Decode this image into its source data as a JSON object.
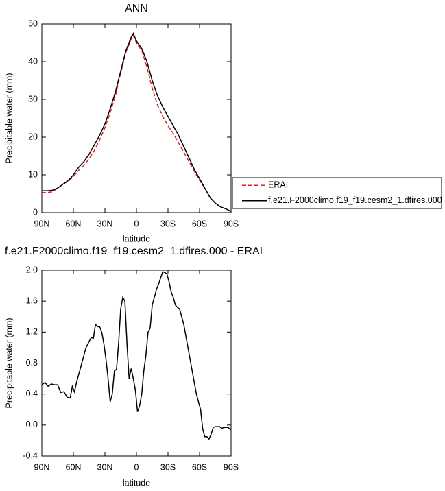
{
  "chart_data": [
    {
      "type": "line",
      "title": "ANN",
      "x_label": "latitude",
      "y_label": "Precipitable water (mm)",
      "x": [
        90,
        85,
        80,
        75,
        70,
        65,
        60,
        55,
        50,
        45,
        40,
        35,
        30,
        25,
        20,
        15,
        10,
        5,
        3,
        0,
        -5,
        -10,
        -15,
        -20,
        -25,
        -30,
        -35,
        -40,
        -45,
        -50,
        -55,
        -60,
        -65,
        -70,
        -75,
        -80,
        -85,
        -90
      ],
      "series": [
        {
          "name": "ERAI",
          "color": "#e41a1c",
          "line_style": "dashed",
          "values": [
            5.3,
            5.3,
            5.5,
            6.5,
            7.5,
            8.3,
            9.5,
            11.2,
            12.5,
            14.3,
            16.5,
            19.3,
            22.5,
            26.5,
            31,
            37,
            42.5,
            46,
            47,
            45,
            43,
            38.5,
            33,
            28.5,
            25.5,
            23,
            21,
            18.5,
            16,
            13.5,
            11,
            8.5,
            6.5,
            4,
            2.5,
            1.5,
            1,
            0.3
          ]
        },
        {
          "name": "f.e21.F2000climo.f19_f19.cesm2_1.dfires.000",
          "color": "#000000",
          "line_style": "solid",
          "values": [
            5.8,
            5.8,
            5.9,
            6.5,
            7.5,
            8.5,
            10,
            12,
            13.5,
            15.5,
            18,
            20.5,
            23.5,
            27.5,
            32,
            37.5,
            43,
            46.5,
            47.5,
            45.5,
            43.5,
            40,
            35,
            31,
            28,
            25.5,
            23,
            20.5,
            17.5,
            14.5,
            11.5,
            9,
            6.5,
            4,
            2.5,
            1.5,
            1,
            0.3
          ]
        }
      ],
      "xlim": [
        90,
        -90
      ],
      "xticks": [
        {
          "value": 90,
          "label": "90N"
        },
        {
          "value": 60,
          "label": "60N"
        },
        {
          "value": 30,
          "label": "30N"
        },
        0,
        {
          "value": -30,
          "label": "30S"
        },
        {
          "value": -60,
          "label": "60S"
        },
        {
          "value": -90,
          "label": "90S"
        }
      ],
      "ylim": [
        0,
        50
      ],
      "yticks": [
        0,
        10,
        20,
        30,
        40,
        50
      ],
      "grid": false
    },
    {
      "type": "line",
      "title": "f.e21.F2000climo.f19_f19.cesm2_1.dfires.000 - ERAI",
      "x_label": "latitude",
      "y_label": "Precipitable water (mm)",
      "x": [
        90,
        87,
        84,
        81,
        78,
        75,
        72,
        69,
        66,
        63,
        61,
        59,
        57,
        54,
        51,
        48,
        45,
        43,
        41,
        39,
        37,
        35,
        33,
        31,
        29,
        27,
        25,
        23,
        21,
        19,
        17,
        15,
        13,
        11,
        9,
        7,
        5,
        3,
        1,
        -1,
        -3,
        -5,
        -7,
        -9,
        -11,
        -13,
        -15,
        -17,
        -19,
        -21,
        -23,
        -25,
        -27,
        -29,
        -31,
        -33,
        -35,
        -37,
        -39,
        -41,
        -43,
        -45,
        -47,
        -49,
        -51,
        -53,
        -55,
        -57,
        -59,
        -61,
        -63,
        -65,
        -67,
        -69,
        -71,
        -73,
        -75,
        -77,
        -79,
        -81,
        -84,
        -87,
        -90
      ],
      "series": [
        {
          "color": "#000000",
          "line_style": "solid",
          "values": [
            0.52,
            0.55,
            0.5,
            0.53,
            0.52,
            0.52,
            0.42,
            0.43,
            0.36,
            0.35,
            0.5,
            0.43,
            0.55,
            0.7,
            0.85,
            1.0,
            1.08,
            1.13,
            1.12,
            1.3,
            1.27,
            1.27,
            1.2,
            1.05,
            0.85,
            0.6,
            0.3,
            0.4,
            0.7,
            0.72,
            1.05,
            1.5,
            1.65,
            1.6,
            1.05,
            0.6,
            0.73,
            0.6,
            0.45,
            0.17,
            0.25,
            0.4,
            0.7,
            0.9,
            1.2,
            1.25,
            1.55,
            1.65,
            1.75,
            1.82,
            1.9,
            1.98,
            1.97,
            1.95,
            1.85,
            1.72,
            1.65,
            1.55,
            1.52,
            1.5,
            1.4,
            1.3,
            1.15,
            1.0,
            0.85,
            0.7,
            0.55,
            0.4,
            0.3,
            0.2,
            -0.05,
            -0.15,
            -0.15,
            -0.18,
            -0.12,
            -0.03,
            -0.02,
            -0.02,
            -0.02,
            -0.04,
            -0.03,
            -0.03,
            -0.06
          ]
        }
      ],
      "xlim": [
        90,
        -90
      ],
      "xticks": [
        {
          "value": 90,
          "label": "90N"
        },
        {
          "value": 60,
          "label": "60N"
        },
        {
          "value": 30,
          "label": "30N"
        },
        0,
        {
          "value": -30,
          "label": "30S"
        },
        {
          "value": -60,
          "label": "60S"
        },
        {
          "value": -90,
          "label": "90S"
        }
      ],
      "ylim": [
        -0.4,
        2.0
      ],
      "yticks": [
        -0.4,
        {
          "value": 0,
          "label": "0.0"
        },
        0.4,
        0.8,
        1.2,
        1.6,
        {
          "value": 2,
          "label": "2.0"
        }
      ],
      "grid": false
    }
  ]
}
